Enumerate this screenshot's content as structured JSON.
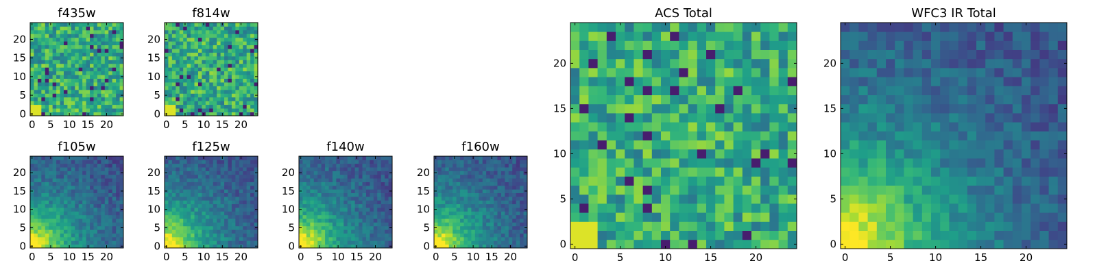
{
  "chart_data": [
    {
      "type": "heatmap",
      "title": "f435w",
      "xlabel": "",
      "ylabel": "",
      "grid_size": 25,
      "xlim": [
        0,
        24
      ],
      "ylim": [
        0,
        24
      ],
      "xticks": [
        0,
        5,
        10,
        15,
        20
      ],
      "yticks": [
        0,
        5,
        10,
        15,
        20
      ],
      "xtick_labels": [
        "0",
        "5",
        "10",
        "15",
        "20"
      ],
      "ytick_labels": [
        "0",
        "5",
        "10",
        "15",
        "20"
      ],
      "colormap": "viridis",
      "pattern": "noise"
    },
    {
      "type": "heatmap",
      "title": "f814w",
      "xlabel": "",
      "ylabel": "",
      "grid_size": 25,
      "xlim": [
        0,
        24
      ],
      "ylim": [
        0,
        24
      ],
      "xticks": [
        0,
        5,
        10,
        15,
        20
      ],
      "yticks": [
        0,
        5,
        10,
        15,
        20
      ],
      "xtick_labels": [
        "0",
        "5",
        "10",
        "15",
        "20"
      ],
      "ytick_labels": [
        "0",
        "5",
        "10",
        "15",
        "20"
      ],
      "colormap": "viridis",
      "pattern": "noise"
    },
    {
      "type": "heatmap",
      "title": "f105w",
      "xlabel": "",
      "ylabel": "",
      "grid_size": 25,
      "xlim": [
        0,
        24
      ],
      "ylim": [
        0,
        24
      ],
      "xticks": [
        0,
        5,
        10,
        15,
        20
      ],
      "yticks": [
        0,
        5,
        10,
        15,
        20
      ],
      "xtick_labels": [
        "0",
        "5",
        "10",
        "15",
        "20"
      ],
      "ytick_labels": [
        "0",
        "5",
        "10",
        "15",
        "20"
      ],
      "colormap": "viridis",
      "pattern": "corner-bright"
    },
    {
      "type": "heatmap",
      "title": "f125w",
      "xlabel": "",
      "ylabel": "",
      "grid_size": 25,
      "xlim": [
        0,
        24
      ],
      "ylim": [
        0,
        24
      ],
      "xticks": [
        0,
        5,
        10,
        15,
        20
      ],
      "yticks": [
        0,
        5,
        10,
        15,
        20
      ],
      "xtick_labels": [
        "0",
        "5",
        "10",
        "15",
        "20"
      ],
      "ytick_labels": [
        "0",
        "5",
        "10",
        "15",
        "20"
      ],
      "colormap": "viridis",
      "pattern": "corner-bright"
    },
    {
      "type": "heatmap",
      "title": "f140w",
      "xlabel": "",
      "ylabel": "",
      "grid_size": 25,
      "xlim": [
        0,
        24
      ],
      "ylim": [
        0,
        24
      ],
      "xticks": [
        0,
        5,
        10,
        15,
        20
      ],
      "yticks": [
        0,
        5,
        10,
        15,
        20
      ],
      "xtick_labels": [
        "0",
        "5",
        "10",
        "15",
        "20"
      ],
      "ytick_labels": [
        "0",
        "5",
        "10",
        "15",
        "20"
      ],
      "colormap": "viridis",
      "pattern": "corner-bright"
    },
    {
      "type": "heatmap",
      "title": "f160w",
      "xlabel": "",
      "ylabel": "",
      "grid_size": 25,
      "xlim": [
        0,
        24
      ],
      "ylim": [
        0,
        24
      ],
      "xticks": [
        0,
        5,
        10,
        15,
        20
      ],
      "yticks": [
        0,
        5,
        10,
        15,
        20
      ],
      "xtick_labels": [
        "0",
        "5",
        "10",
        "15",
        "20"
      ],
      "ytick_labels": [
        "0",
        "5",
        "10",
        "15",
        "20"
      ],
      "colormap": "viridis",
      "pattern": "corner-bright"
    },
    {
      "type": "heatmap",
      "title": "ACS Total",
      "xlabel": "",
      "ylabel": "",
      "grid_size": 25,
      "xlim": [
        0,
        24
      ],
      "ylim": [
        0,
        24
      ],
      "xticks": [
        0,
        5,
        10,
        15,
        20
      ],
      "yticks": [
        0,
        5,
        10,
        15,
        20
      ],
      "xtick_labels": [
        "0",
        "5",
        "10",
        "15",
        "20"
      ],
      "ytick_labels": [
        "0",
        "5",
        "10",
        "15",
        "20"
      ],
      "colormap": "viridis",
      "pattern": "noise"
    },
    {
      "type": "heatmap",
      "title": "WFC3 IR Total",
      "xlabel": "",
      "ylabel": "",
      "grid_size": 25,
      "xlim": [
        0,
        24
      ],
      "ylim": [
        0,
        24
      ],
      "xticks": [
        0,
        5,
        10,
        15,
        20
      ],
      "yticks": [
        0,
        5,
        10,
        15,
        20
      ],
      "xtick_labels": [
        "0",
        "5",
        "10",
        "15",
        "20"
      ],
      "ytick_labels": [
        "0",
        "5",
        "10",
        "15",
        "20"
      ],
      "colormap": "viridis",
      "pattern": "corner-bright"
    }
  ]
}
